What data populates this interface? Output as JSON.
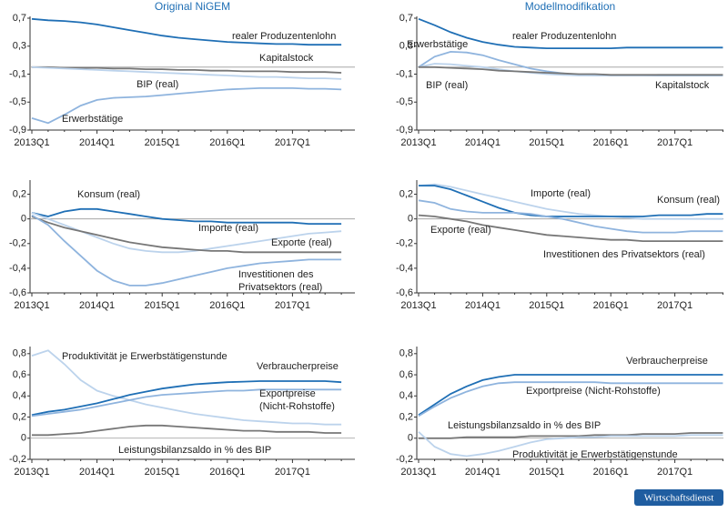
{
  "chart_data": [
    {
      "type": "line",
      "title": "Original NiGEM",
      "categories": [
        "2013Q1",
        null,
        null,
        null,
        "2014Q1",
        null,
        null,
        null,
        "2015Q1",
        null,
        null,
        null,
        "2016Q1",
        null,
        null,
        null,
        "2017Q1",
        null,
        null,
        null
      ],
      "ylim": [
        -0.9,
        0.7
      ],
      "yticks": [
        {
          "value": 0.7,
          "label": "0,7"
        },
        {
          "value": 0.3,
          "label": "0,3"
        },
        {
          "value": -0.1,
          "label": "-0,1"
        },
        {
          "value": -0.5,
          "label": "-0,5"
        },
        {
          "value": -0.9,
          "label": "-0,9"
        }
      ],
      "series": [
        {
          "name": "realer Produzentenlohn",
          "color": "#1f6fb5",
          "values": [
            0.69,
            0.67,
            0.66,
            0.64,
            0.61,
            0.57,
            0.53,
            0.49,
            0.45,
            0.42,
            0.4,
            0.38,
            0.36,
            0.35,
            0.34,
            0.33,
            0.33,
            0.32,
            0.32,
            0.32
          ]
        },
        {
          "name": "Kapitalstock",
          "color": "#777777",
          "values": [
            0.0,
            0.0,
            -0.01,
            -0.01,
            -0.01,
            -0.02,
            -0.02,
            -0.03,
            -0.03,
            -0.04,
            -0.04,
            -0.05,
            -0.05,
            -0.06,
            -0.06,
            -0.06,
            -0.07,
            -0.07,
            -0.07,
            -0.08
          ]
        },
        {
          "name": "BIP (real)",
          "color": "#bcd3ec",
          "values": [
            0.0,
            -0.01,
            -0.02,
            -0.03,
            -0.04,
            -0.05,
            -0.06,
            -0.07,
            -0.08,
            -0.09,
            -0.1,
            -0.11,
            -0.12,
            -0.13,
            -0.14,
            -0.14,
            -0.15,
            -0.16,
            -0.16,
            -0.17
          ]
        },
        {
          "name": "Erwerbstätige",
          "color": "#8fb4de",
          "values": [
            -0.73,
            -0.8,
            -0.68,
            -0.55,
            -0.47,
            -0.44,
            -0.43,
            -0.42,
            -0.4,
            -0.38,
            -0.36,
            -0.34,
            -0.32,
            -0.31,
            -0.3,
            -0.3,
            -0.3,
            -0.31,
            -0.31,
            -0.32
          ]
        }
      ]
    },
    {
      "type": "line",
      "title": "Modellmodifikation",
      "categories": [
        "2013Q1",
        null,
        null,
        null,
        "2014Q1",
        null,
        null,
        null,
        "2015Q1",
        null,
        null,
        null,
        "2016Q1",
        null,
        null,
        null,
        "2017Q1",
        null,
        null,
        null
      ],
      "ylim": [
        -0.9,
        0.7
      ],
      "yticks": [
        {
          "value": 0.7,
          "label": "0,7"
        },
        {
          "value": 0.3,
          "label": "0,3"
        },
        {
          "value": -0.1,
          "label": "-0,1"
        },
        {
          "value": -0.5,
          "label": "-0,5"
        },
        {
          "value": -0.9,
          "label": "-0,9"
        }
      ],
      "series": [
        {
          "name": "realer Produzentenlohn",
          "color": "#1f6fb5",
          "values": [
            0.69,
            0.6,
            0.5,
            0.42,
            0.36,
            0.32,
            0.29,
            0.28,
            0.27,
            0.27,
            0.27,
            0.27,
            0.27,
            0.28,
            0.28,
            0.28,
            0.28,
            0.28,
            0.28,
            0.28
          ]
        },
        {
          "name": "Erwerbstätige",
          "color": "#8fb4de",
          "values": [
            0.0,
            0.15,
            0.22,
            0.21,
            0.17,
            0.1,
            0.04,
            -0.02,
            -0.06,
            -0.09,
            -0.11,
            -0.12,
            -0.12,
            -0.12,
            -0.12,
            -0.12,
            -0.12,
            -0.12,
            -0.12,
            -0.12
          ]
        },
        {
          "name": "BIP (real)",
          "color": "#bcd3ec",
          "values": [
            0.0,
            0.05,
            0.04,
            0.02,
            0.0,
            -0.03,
            -0.06,
            -0.08,
            -0.1,
            -0.11,
            -0.12,
            -0.12,
            -0.12,
            -0.12,
            -0.12,
            -0.11,
            -0.11,
            -0.11,
            -0.11,
            -0.11
          ]
        },
        {
          "name": "Kapitalstock",
          "color": "#777777",
          "values": [
            0.0,
            0.0,
            -0.01,
            -0.02,
            -0.03,
            -0.05,
            -0.06,
            -0.07,
            -0.08,
            -0.09,
            -0.1,
            -0.1,
            -0.11,
            -0.11,
            -0.11,
            -0.11,
            -0.11,
            -0.11,
            -0.11,
            -0.11
          ]
        }
      ]
    },
    {
      "type": "line",
      "categories": [
        "2013Q1",
        null,
        null,
        null,
        "2014Q1",
        null,
        null,
        null,
        "2015Q1",
        null,
        null,
        null,
        "2016Q1",
        null,
        null,
        null,
        "2017Q1",
        null,
        null,
        null
      ],
      "ylim": [
        -0.6,
        0.3
      ],
      "yticks": [
        {
          "value": 0.2,
          "label": "0,2"
        },
        0,
        {
          "value": -0.2,
          "label": "-0,2"
        },
        {
          "value": -0.4,
          "label": "-0,4"
        },
        {
          "value": -0.6,
          "label": "-0,6"
        }
      ],
      "series": [
        {
          "name": "Konsum (real)",
          "color": "#1f6fb5",
          "values": [
            0.05,
            0.02,
            0.06,
            0.08,
            0.08,
            0.06,
            0.04,
            0.02,
            0.0,
            -0.01,
            -0.02,
            -0.02,
            -0.03,
            -0.03,
            -0.03,
            -0.03,
            -0.03,
            -0.04,
            -0.04,
            -0.04
          ]
        },
        {
          "name": "Importe (real)",
          "color": "#bcd3ec",
          "values": [
            0.05,
            0.0,
            -0.05,
            -0.1,
            -0.15,
            -0.2,
            -0.24,
            -0.26,
            -0.27,
            -0.27,
            -0.26,
            -0.24,
            -0.22,
            -0.2,
            -0.18,
            -0.16,
            -0.14,
            -0.12,
            -0.11,
            -0.1
          ]
        },
        {
          "name": "Exporte (real)",
          "color": "#777777",
          "values": [
            0.02,
            -0.03,
            -0.07,
            -0.1,
            -0.13,
            -0.16,
            -0.19,
            -0.21,
            -0.23,
            -0.24,
            -0.25,
            -0.26,
            -0.26,
            -0.27,
            -0.27,
            -0.27,
            -0.27,
            -0.27,
            -0.27,
            -0.27
          ]
        },
        {
          "name": "Investitionen des Privatsektors (real)",
          "color": "#8fb4de",
          "values": [
            0.03,
            -0.05,
            -0.18,
            -0.3,
            -0.42,
            -0.5,
            -0.54,
            -0.54,
            -0.52,
            -0.49,
            -0.46,
            -0.43,
            -0.4,
            -0.38,
            -0.36,
            -0.35,
            -0.34,
            -0.33,
            -0.33,
            -0.33
          ]
        }
      ]
    },
    {
      "type": "line",
      "categories": [
        "2013Q1",
        null,
        null,
        null,
        "2014Q1",
        null,
        null,
        null,
        "2015Q1",
        null,
        null,
        null,
        "2016Q1",
        null,
        null,
        null,
        "2017Q1",
        null,
        null,
        null
      ],
      "ylim": [
        -0.6,
        0.3
      ],
      "yticks": [
        {
          "value": 0.2,
          "label": "0,2"
        },
        0,
        {
          "value": -0.2,
          "label": "-0,2"
        },
        {
          "value": -0.4,
          "label": "-0,4"
        },
        {
          "value": -0.6,
          "label": "-0,6"
        }
      ],
      "series": [
        {
          "name": "Importe (real)",
          "color": "#bcd3ec",
          "values": [
            0.27,
            0.28,
            0.26,
            0.23,
            0.2,
            0.17,
            0.14,
            0.11,
            0.08,
            0.06,
            0.04,
            0.03,
            0.02,
            0.01,
            0.0,
            0.0,
            0.0,
            0.0,
            0.0,
            0.0
          ]
        },
        {
          "name": "Konsum (real)",
          "color": "#1f6fb5",
          "values": [
            0.27,
            0.27,
            0.24,
            0.19,
            0.14,
            0.09,
            0.05,
            0.03,
            0.02,
            0.02,
            0.02,
            0.02,
            0.02,
            0.02,
            0.02,
            0.03,
            0.03,
            0.03,
            0.04,
            0.04
          ]
        },
        {
          "name": "Exporte (real)",
          "color": "#777777",
          "values": [
            0.03,
            0.02,
            0.0,
            -0.02,
            -0.05,
            -0.07,
            -0.09,
            -0.11,
            -0.13,
            -0.14,
            -0.15,
            -0.16,
            -0.17,
            -0.17,
            -0.18,
            -0.18,
            -0.18,
            -0.18,
            -0.18,
            -0.18
          ]
        },
        {
          "name": "Investitionen des Privatsektors (real)",
          "color": "#8fb4de",
          "values": [
            0.15,
            0.13,
            0.08,
            0.06,
            0.05,
            0.05,
            0.05,
            0.04,
            0.02,
            0.0,
            -0.03,
            -0.06,
            -0.08,
            -0.1,
            -0.11,
            -0.11,
            -0.11,
            -0.1,
            -0.1,
            -0.1
          ]
        }
      ]
    },
    {
      "type": "line",
      "categories": [
        "2013Q1",
        null,
        null,
        null,
        "2014Q1",
        null,
        null,
        null,
        "2015Q1",
        null,
        null,
        null,
        "2016Q1",
        null,
        null,
        null,
        "2017Q1",
        null,
        null,
        null
      ],
      "ylim": [
        -0.2,
        0.85
      ],
      "yticks": [
        {
          "value": 0.8,
          "label": "0,8"
        },
        {
          "value": 0.6,
          "label": "0,6"
        },
        {
          "value": 0.4,
          "label": "0,4"
        },
        {
          "value": 0.2,
          "label": "0,2"
        },
        0,
        {
          "value": -0.2,
          "label": "-0,2"
        }
      ],
      "series": [
        {
          "name": "Produktivität je Erwerbstätigenstunde",
          "color": "#bcd3ec",
          "values": [
            0.78,
            0.83,
            0.7,
            0.55,
            0.45,
            0.4,
            0.36,
            0.32,
            0.29,
            0.26,
            0.23,
            0.21,
            0.19,
            0.17,
            0.16,
            0.15,
            0.14,
            0.14,
            0.13,
            0.13
          ]
        },
        {
          "name": "Verbraucherpreise",
          "color": "#1f6fb5",
          "values": [
            0.22,
            0.25,
            0.27,
            0.3,
            0.33,
            0.37,
            0.41,
            0.44,
            0.47,
            0.49,
            0.51,
            0.52,
            0.53,
            0.535,
            0.54,
            0.54,
            0.54,
            0.54,
            0.54,
            0.53
          ]
        },
        {
          "name": "Exportpreise (Nicht-Rohstoffe)",
          "color": "#8fb4de",
          "values": [
            0.21,
            0.23,
            0.25,
            0.27,
            0.3,
            0.33,
            0.36,
            0.39,
            0.41,
            0.42,
            0.43,
            0.44,
            0.45,
            0.45,
            0.46,
            0.46,
            0.46,
            0.46,
            0.46,
            0.46
          ]
        },
        {
          "name": "Leistungsbilanzsaldo in % des BIP",
          "color": "#777777",
          "values": [
            0.03,
            0.03,
            0.04,
            0.05,
            0.07,
            0.09,
            0.11,
            0.12,
            0.12,
            0.11,
            0.1,
            0.09,
            0.08,
            0.07,
            0.07,
            0.06,
            0.06,
            0.06,
            0.05,
            0.05
          ]
        }
      ]
    },
    {
      "type": "line",
      "categories": [
        "2013Q1",
        null,
        null,
        null,
        "2014Q1",
        null,
        null,
        null,
        "2015Q1",
        null,
        null,
        null,
        "2016Q1",
        null,
        null,
        null,
        "2017Q1",
        null,
        null,
        null
      ],
      "ylim": [
        -0.2,
        0.85
      ],
      "yticks": [
        {
          "value": 0.8,
          "label": "0,8"
        },
        {
          "value": 0.6,
          "label": "0,6"
        },
        {
          "value": 0.4,
          "label": "0,4"
        },
        {
          "value": 0.2,
          "label": "0,2"
        },
        0,
        {
          "value": -0.2,
          "label": "-0,2"
        }
      ],
      "series": [
        {
          "name": "Verbraucherpreise",
          "color": "#1f6fb5",
          "values": [
            0.22,
            0.32,
            0.42,
            0.49,
            0.55,
            0.58,
            0.6,
            0.6,
            0.6,
            0.6,
            0.6,
            0.6,
            0.6,
            0.6,
            0.6,
            0.6,
            0.6,
            0.6,
            0.6,
            0.6
          ]
        },
        {
          "name": "Exportpreise (Nicht-Rohstoffe)",
          "color": "#8fb4de",
          "values": [
            0.21,
            0.3,
            0.38,
            0.44,
            0.49,
            0.52,
            0.53,
            0.53,
            0.53,
            0.53,
            0.53,
            0.53,
            0.52,
            0.52,
            0.52,
            0.52,
            0.52,
            0.52,
            0.52,
            0.52
          ]
        },
        {
          "name": "Leistungsbilanzsaldo in % des BIP",
          "color": "#777777",
          "values": [
            0.0,
            0.0,
            0.0,
            0.01,
            0.01,
            0.01,
            0.01,
            0.02,
            0.02,
            0.02,
            0.02,
            0.03,
            0.03,
            0.03,
            0.04,
            0.04,
            0.04,
            0.05,
            0.05,
            0.05
          ]
        },
        {
          "name": "Produktivität je Erwerbstätigenstunde",
          "color": "#bcd3ec",
          "values": [
            0.06,
            -0.08,
            -0.15,
            -0.17,
            -0.15,
            -0.12,
            -0.08,
            -0.04,
            -0.01,
            0.0,
            0.01,
            0.01,
            0.02,
            0.02,
            0.02,
            0.02,
            0.02,
            0.03,
            0.03,
            0.03
          ]
        }
      ]
    }
  ],
  "source": "Wirtschaftsdienst"
}
